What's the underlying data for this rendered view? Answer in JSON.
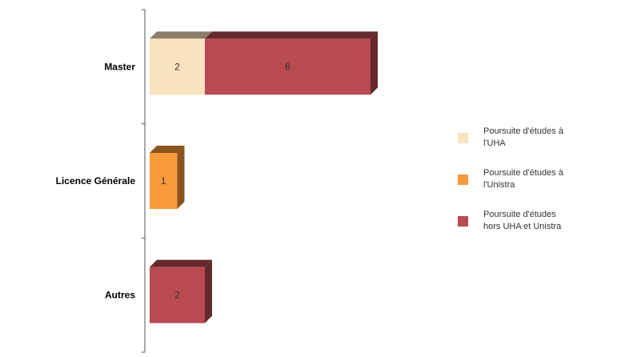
{
  "chart_data": {
    "type": "bar",
    "orientation": "horizontal",
    "stacked": true,
    "three_d": true,
    "categories": [
      "Master",
      "Licence Générale",
      "Autres"
    ],
    "series": [
      {
        "name": "Poursuite d'études à l'UHA",
        "legend_lines": [
          "Poursuite d'études à",
          "l'UHA"
        ],
        "color": "#FBE3C0",
        "values": [
          2,
          0,
          0
        ]
      },
      {
        "name": "Poursuite d'études à l'Unistra",
        "legend_lines": [
          "Poursuite d'études à",
          "l'Unistra"
        ],
        "color": "#F79A3A",
        "values": [
          0,
          1,
          0
        ]
      },
      {
        "name": "Poursuite d'études hors UHA et Unistra",
        "legend_lines": [
          "Poursuite d'études",
          "hors UHA et Unistra"
        ],
        "color": "#B84A52",
        "values": [
          6,
          0,
          2
        ]
      }
    ],
    "data_labels": true,
    "grid": false,
    "legend_position": "right",
    "title": "",
    "xlabel": "",
    "ylabel": ""
  }
}
